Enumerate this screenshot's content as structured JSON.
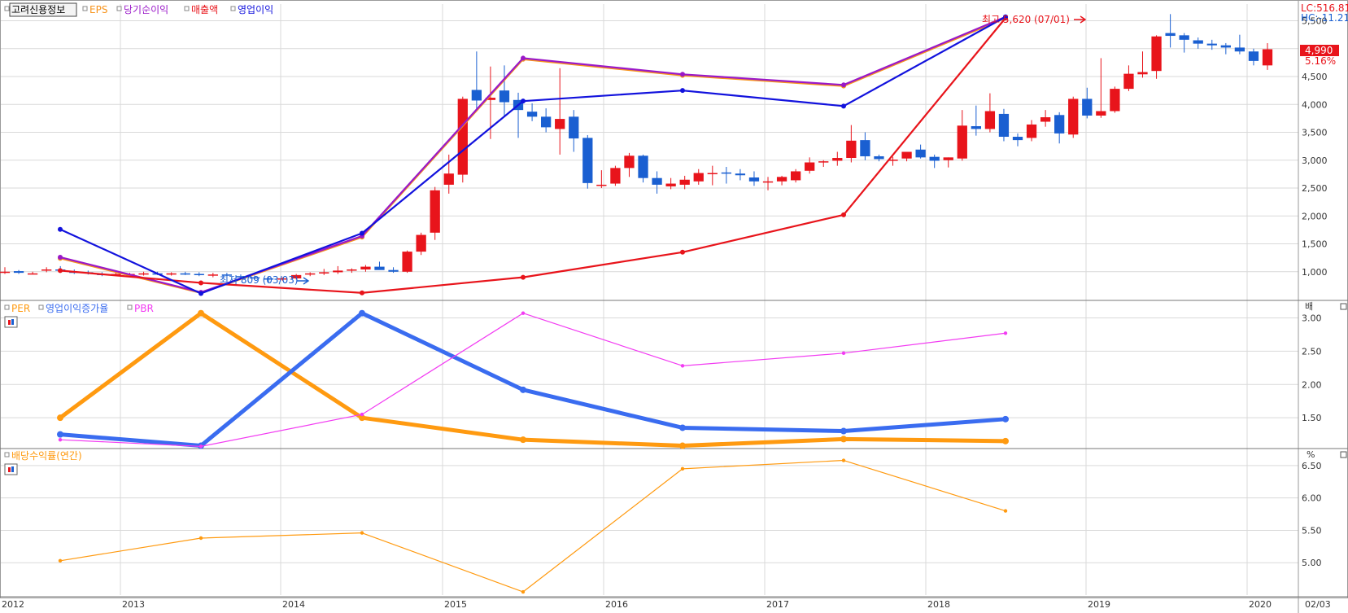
{
  "colors": {
    "grid": "#d9d9d9",
    "frame": "#9a9a9a",
    "up": "#e8141b",
    "down": "#1a5fd1",
    "eps": "#f7941d",
    "net_income": "#9a18c8",
    "sales": "#e8141b",
    "op_income": "#1212dd",
    "per": "#ff9a10",
    "op_growth": "#3a6cf0",
    "pbr": "#f23cf2",
    "dividend": "#ff9a10"
  },
  "time_axis": {
    "labels": [
      "2012",
      "2013",
      "2014",
      "2015",
      "2016",
      "2017",
      "2018",
      "2019",
      "2020"
    ],
    "end_label": "02/03"
  },
  "price_panel": {
    "legend": [
      {
        "label": "고려신용정보",
        "color": "#000000",
        "boxed": true
      },
      {
        "label": "EPS",
        "color": "#f7941d"
      },
      {
        "label": "당기순이익",
        "color": "#9a18c8"
      },
      {
        "label": "매출액",
        "color": "#e8141b"
      },
      {
        "label": "영업이익",
        "color": "#1212dd"
      }
    ],
    "y_ticks": [
      "5,500",
      "5,000",
      "4,500",
      "4,000",
      "3,500",
      "3,000",
      "2,500",
      "2,000",
      "1,500",
      "1,000"
    ],
    "lc_label": "LC:516.81",
    "hc_label": "HC:-11.21",
    "price_label": "4,990",
    "change_label": "5.16%",
    "high_label": "최고 5,620 (07/01)",
    "low_label": "최저 809 (03/03)"
  },
  "middle_panel": {
    "legend": [
      {
        "label": "PER",
        "color": "#ff9a10"
      },
      {
        "label": "영업이익증가율",
        "color": "#3a6cf0"
      },
      {
        "label": "PBR",
        "color": "#f23cf2"
      }
    ],
    "unit": "배",
    "y_ticks": [
      "3.00",
      "2.50",
      "2.00",
      "1.50"
    ]
  },
  "bottom_panel": {
    "legend": [
      {
        "label": "배당수익률(연간)",
        "color": "#ff9a10"
      }
    ],
    "unit": "%",
    "y_ticks": [
      "6.50",
      "6.00",
      "5.50",
      "5.00"
    ]
  },
  "chart_data": [
    {
      "type": "line",
      "title": "고려신용정보",
      "x": [
        "2012",
        "2013",
        "2014",
        "2015",
        "2016",
        "2017",
        "2018"
      ],
      "series": [
        {
          "name": "EPS",
          "values": [
            1240,
            620,
            1620,
            4810,
            4520,
            4330,
            5550
          ]
        },
        {
          "name": "당기순이익",
          "values": [
            1260,
            630,
            1640,
            4830,
            4540,
            4350,
            5570
          ]
        },
        {
          "name": "매출액",
          "values": [
            1020,
            800,
            620,
            900,
            1350,
            2020,
            5550
          ]
        },
        {
          "name": "영업이익",
          "values": [
            1760,
            610,
            1690,
            4060,
            4250,
            3970,
            5570
          ]
        }
      ],
      "ylim": [
        500,
        5800
      ]
    },
    {
      "type": "bar",
      "title": "고려신용정보",
      "candles": [
        {
          "o": 1000,
          "h": 1080,
          "l": 960,
          "c": 1000
        },
        {
          "o": 1010,
          "h": 1030,
          "l": 960,
          "c": 980
        },
        {
          "o": 970,
          "h": 1000,
          "l": 950,
          "c": 970
        },
        {
          "o": 1040,
          "h": 1080,
          "l": 990,
          "c": 1040
        },
        {
          "o": 1040,
          "h": 1100,
          "l": 1000,
          "c": 1020
        },
        {
          "o": 1000,
          "h": 1040,
          "l": 960,
          "c": 980
        },
        {
          "o": 990,
          "h": 1020,
          "l": 950,
          "c": 970
        },
        {
          "o": 960,
          "h": 990,
          "l": 920,
          "c": 950
        },
        {
          "o": 950,
          "h": 990,
          "l": 920,
          "c": 960
        },
        {
          "o": 950,
          "h": 980,
          "l": 920,
          "c": 960
        },
        {
          "o": 960,
          "h": 1000,
          "l": 930,
          "c": 970
        },
        {
          "o": 970,
          "h": 1000,
          "l": 940,
          "c": 950
        },
        {
          "o": 960,
          "h": 990,
          "l": 930,
          "c": 970
        },
        {
          "o": 970,
          "h": 1000,
          "l": 940,
          "c": 960
        },
        {
          "o": 960,
          "h": 990,
          "l": 920,
          "c": 940
        },
        {
          "o": 940,
          "h": 980,
          "l": 900,
          "c": 950
        },
        {
          "o": 950,
          "h": 980,
          "l": 920,
          "c": 930
        },
        {
          "o": 920,
          "h": 950,
          "l": 880,
          "c": 910
        },
        {
          "o": 900,
          "h": 930,
          "l": 870,
          "c": 890
        },
        {
          "o": 880,
          "h": 910,
          "l": 809,
          "c": 860
        },
        {
          "o": 860,
          "h": 900,
          "l": 840,
          "c": 880
        },
        {
          "o": 880,
          "h": 960,
          "l": 860,
          "c": 940
        },
        {
          "o": 950,
          "h": 990,
          "l": 920,
          "c": 970
        },
        {
          "o": 970,
          "h": 1050,
          "l": 940,
          "c": 990
        },
        {
          "o": 990,
          "h": 1100,
          "l": 960,
          "c": 1020
        },
        {
          "o": 1020,
          "h": 1060,
          "l": 980,
          "c": 1040
        },
        {
          "o": 1040,
          "h": 1120,
          "l": 1000,
          "c": 1090
        },
        {
          "o": 1090,
          "h": 1180,
          "l": 1050,
          "c": 1030
        },
        {
          "o": 1030,
          "h": 1080,
          "l": 980,
          "c": 1000
        },
        {
          "o": 1000,
          "h": 1380,
          "l": 980,
          "c": 1360
        },
        {
          "o": 1360,
          "h": 1700,
          "l": 1300,
          "c": 1660
        },
        {
          "o": 1700,
          "h": 2520,
          "l": 1570,
          "c": 2460
        },
        {
          "o": 2560,
          "h": 3100,
          "l": 2400,
          "c": 2760
        },
        {
          "o": 2740,
          "h": 4140,
          "l": 2600,
          "c": 4100
        },
        {
          "o": 4260,
          "h": 4950,
          "l": 3900,
          "c": 4070
        },
        {
          "o": 4080,
          "h": 4680,
          "l": 3380,
          "c": 4120
        },
        {
          "o": 4250,
          "h": 4700,
          "l": 3800,
          "c": 4040
        },
        {
          "o": 4080,
          "h": 4210,
          "l": 3400,
          "c": 3900
        },
        {
          "o": 3870,
          "h": 4020,
          "l": 3700,
          "c": 3780
        },
        {
          "o": 3780,
          "h": 3930,
          "l": 3500,
          "c": 3590
        },
        {
          "o": 3560,
          "h": 4650,
          "l": 3100,
          "c": 3740
        },
        {
          "o": 3780,
          "h": 3900,
          "l": 3150,
          "c": 3390
        },
        {
          "o": 3400,
          "h": 3450,
          "l": 2490,
          "c": 2590
        },
        {
          "o": 2560,
          "h": 2820,
          "l": 2500,
          "c": 2560
        },
        {
          "o": 2580,
          "h": 2900,
          "l": 2540,
          "c": 2860
        },
        {
          "o": 2860,
          "h": 3130,
          "l": 2700,
          "c": 3080
        },
        {
          "o": 3080,
          "h": 3100,
          "l": 2600,
          "c": 2680
        },
        {
          "o": 2680,
          "h": 2800,
          "l": 2400,
          "c": 2560
        },
        {
          "o": 2530,
          "h": 2680,
          "l": 2480,
          "c": 2580
        },
        {
          "o": 2560,
          "h": 2720,
          "l": 2480,
          "c": 2650
        },
        {
          "o": 2620,
          "h": 2840,
          "l": 2560,
          "c": 2770
        },
        {
          "o": 2760,
          "h": 2900,
          "l": 2550,
          "c": 2770
        },
        {
          "o": 2780,
          "h": 2880,
          "l": 2580,
          "c": 2770
        },
        {
          "o": 2760,
          "h": 2840,
          "l": 2640,
          "c": 2730
        },
        {
          "o": 2690,
          "h": 2800,
          "l": 2540,
          "c": 2620
        },
        {
          "o": 2620,
          "h": 2700,
          "l": 2460,
          "c": 2620
        },
        {
          "o": 2620,
          "h": 2720,
          "l": 2550,
          "c": 2700
        },
        {
          "o": 2640,
          "h": 2840,
          "l": 2600,
          "c": 2800
        },
        {
          "o": 2810,
          "h": 3050,
          "l": 2760,
          "c": 2960
        },
        {
          "o": 2960,
          "h": 3000,
          "l": 2880,
          "c": 2980
        },
        {
          "o": 2990,
          "h": 3150,
          "l": 2900,
          "c": 3040
        },
        {
          "o": 3040,
          "h": 3630,
          "l": 2960,
          "c": 3350
        },
        {
          "o": 3360,
          "h": 3500,
          "l": 3000,
          "c": 3070
        },
        {
          "o": 3070,
          "h": 3100,
          "l": 2980,
          "c": 3020
        },
        {
          "o": 3000,
          "h": 3060,
          "l": 2900,
          "c": 3010
        },
        {
          "o": 3030,
          "h": 3140,
          "l": 2980,
          "c": 3150
        },
        {
          "o": 3190,
          "h": 3280,
          "l": 3030,
          "c": 3050
        },
        {
          "o": 3060,
          "h": 3100,
          "l": 2860,
          "c": 2990
        },
        {
          "o": 3000,
          "h": 3050,
          "l": 2870,
          "c": 3050
        },
        {
          "o": 3030,
          "h": 3900,
          "l": 2990,
          "c": 3620
        },
        {
          "o": 3610,
          "h": 3980,
          "l": 3440,
          "c": 3560
        },
        {
          "o": 3560,
          "h": 4200,
          "l": 3500,
          "c": 3880
        },
        {
          "o": 3830,
          "h": 3920,
          "l": 3340,
          "c": 3420
        },
        {
          "o": 3420,
          "h": 3480,
          "l": 3250,
          "c": 3360
        },
        {
          "o": 3400,
          "h": 3720,
          "l": 3340,
          "c": 3640
        },
        {
          "o": 3690,
          "h": 3900,
          "l": 3600,
          "c": 3770
        },
        {
          "o": 3810,
          "h": 3860,
          "l": 3300,
          "c": 3480
        },
        {
          "o": 3460,
          "h": 4140,
          "l": 3400,
          "c": 4100
        },
        {
          "o": 4100,
          "h": 4300,
          "l": 3750,
          "c": 3800
        },
        {
          "o": 3800,
          "h": 4830,
          "l": 3760,
          "c": 3880
        },
        {
          "o": 3880,
          "h": 4320,
          "l": 3850,
          "c": 4280
        },
        {
          "o": 4280,
          "h": 4700,
          "l": 4240,
          "c": 4550
        },
        {
          "o": 4540,
          "h": 4950,
          "l": 4480,
          "c": 4580
        },
        {
          "o": 4600,
          "h": 5240,
          "l": 4460,
          "c": 5220
        },
        {
          "o": 5280,
          "h": 5620,
          "l": 5020,
          "c": 5230
        },
        {
          "o": 5240,
          "h": 5280,
          "l": 4930,
          "c": 5160
        },
        {
          "o": 5150,
          "h": 5200,
          "l": 5000,
          "c": 5090
        },
        {
          "o": 5090,
          "h": 5160,
          "l": 4980,
          "c": 5060
        },
        {
          "o": 5060,
          "h": 5100,
          "l": 4900,
          "c": 5020
        },
        {
          "o": 5020,
          "h": 5250,
          "l": 4900,
          "c": 4950
        },
        {
          "o": 4950,
          "h": 5000,
          "l": 4700,
          "c": 4780
        },
        {
          "o": 4700,
          "h": 5100,
          "l": 4620,
          "c": 4990
        }
      ]
    },
    {
      "type": "line",
      "title": "",
      "x": [
        "2012",
        "2013",
        "2014",
        "2015",
        "2016",
        "2017",
        "2018"
      ],
      "series": [
        {
          "name": "PER",
          "values": [
            1.5,
            3.07,
            1.5,
            1.17,
            1.08,
            1.18,
            1.15
          ]
        },
        {
          "name": "영업이익증가율",
          "values": [
            1.25,
            1.08,
            3.07,
            1.92,
            1.35,
            1.3,
            1.48
          ]
        },
        {
          "name": "PBR",
          "values": [
            1.17,
            1.07,
            1.55,
            3.07,
            2.28,
            2.47,
            2.77
          ]
        }
      ],
      "ylim": [
        1.05,
        3.25
      ]
    },
    {
      "type": "line",
      "title": "",
      "x": [
        "2012",
        "2013",
        "2014",
        "2015",
        "2016",
        "2017",
        "2018"
      ],
      "series": [
        {
          "name": "배당수익률(연간)",
          "values": [
            5.03,
            5.38,
            5.46,
            4.55,
            6.45,
            6.58,
            5.8
          ]
        }
      ],
      "ylim": [
        4.5,
        6.75
      ]
    }
  ]
}
